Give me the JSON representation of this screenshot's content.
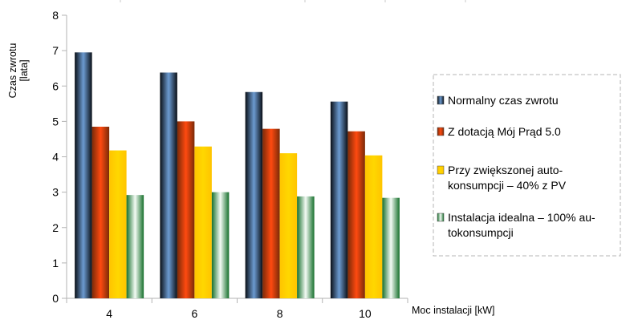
{
  "chart_data": {
    "type": "bar",
    "title": "",
    "xlabel": "Moc instalacji [kW]",
    "ylabel_lines": [
      "Czas zwrotu",
      "[lata]"
    ],
    "categories": [
      "4",
      "6",
      "8",
      "10"
    ],
    "ylim": [
      0,
      8
    ],
    "yticks": [
      0,
      1,
      2,
      3,
      4,
      5,
      6,
      7,
      8
    ],
    "grid": false,
    "legend_position": "right",
    "series": [
      {
        "name": "Normalny czas zwrotu",
        "values": [
          6.95,
          6.38,
          5.83,
          5.56
        ],
        "colors": {
          "edge": "#0a0f16",
          "mid": "#6c9bd1"
        }
      },
      {
        "name_lines": [
          "Z dotacją Mój Prąd 5.0"
        ],
        "values": [
          4.85,
          5.0,
          4.79,
          4.72
        ],
        "colors": {
          "edge": "#7a2a08",
          "mid": "#ff4a10"
        }
      },
      {
        "name_lines": [
          "Przy zwiększonej auto-",
          "konsumpcji – 40% z PV"
        ],
        "values": [
          4.18,
          4.29,
          4.1,
          4.04
        ],
        "colors": {
          "edge": "#ffc400",
          "mid": "#ffd700"
        }
      },
      {
        "name_lines": [
          "Instalacja idealna – 100% au-",
          "tokonsumpcji"
        ],
        "values": [
          2.92,
          3.0,
          2.88,
          2.84
        ],
        "colors": {
          "edge": "#16702c",
          "mid": "#f4fbf5"
        }
      }
    ]
  }
}
